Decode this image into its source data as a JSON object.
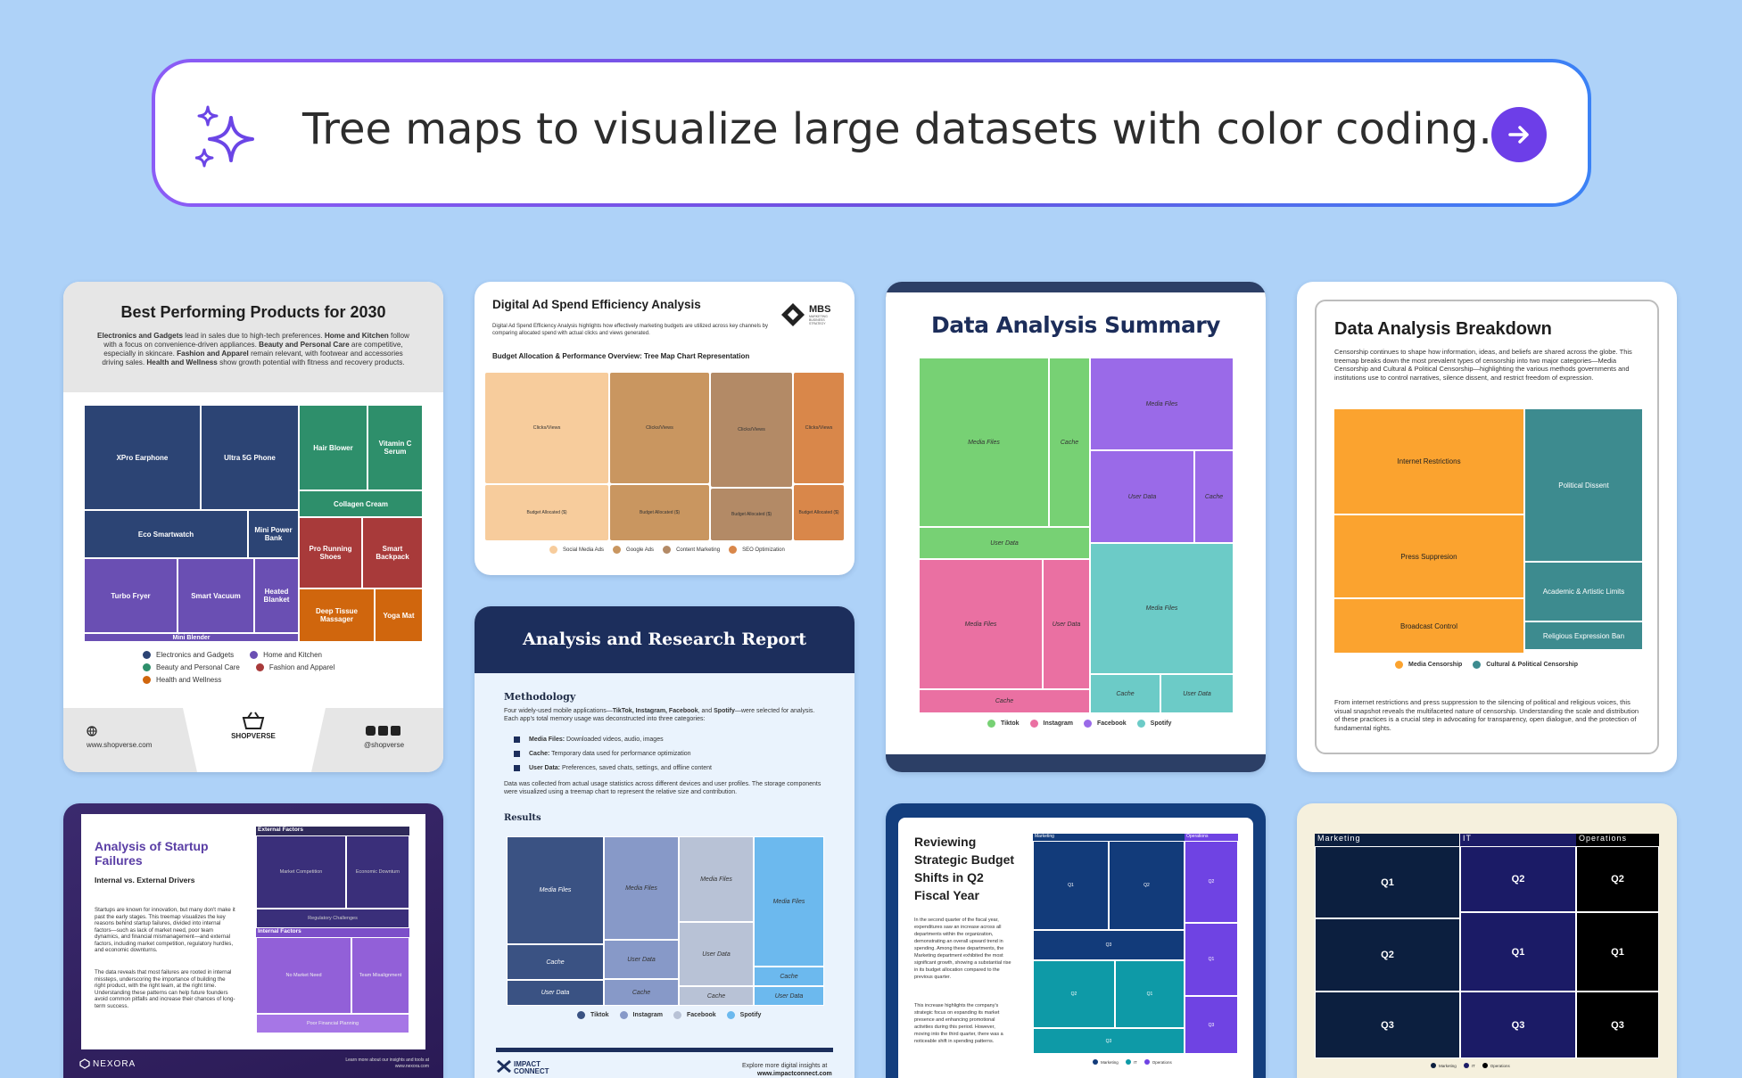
{
  "search": {
    "query": "Tree maps to visualize large datasets with color coding...",
    "sparkle_icon": "sparkles-icon",
    "submit_icon": "arrow-right-icon",
    "accent": "#6d3ee8"
  },
  "card1": {
    "title": "Best Performing Products for 2030",
    "desc_parts": [
      "Electronics and Gadgets",
      " lead in sales due to high-tech preferences. ",
      "Home and Kitchen",
      " follow with a focus on convenience-driven appliances. ",
      "Beauty and Personal Care",
      " are competitive, especially in skincare. ",
      "Fashion and Apparel",
      " remain relevant, with footwear and accessories driving sales. ",
      "Health and Wellness",
      " show growth potential with fitness and recovery products."
    ],
    "tiles": [
      "XPro Earphone",
      "Ultra 5G Phone",
      "Eco Smartwatch",
      "Mini Power Bank",
      "Turbo Fryer",
      "Smart Vacuum",
      "Heated Blanket",
      "Mini Blender",
      "Hair Blower",
      "Vitamin C Serum",
      "Collagen Cream",
      "Pro Running Shoes",
      "Smart Backpack",
      "Deep Tissue Massager",
      "Yoga Mat"
    ],
    "legend": [
      "Electronics and Gadgets",
      "Home and Kitchen",
      "Beauty and Personal Care",
      "Fashion and Apparel",
      "Health and Wellness"
    ],
    "colors": {
      "electronics": "#2c4474",
      "home": "#6a4fb3",
      "beauty": "#2e8f6b",
      "fashion": "#a83a3a",
      "health": "#d0660d"
    },
    "footer_web": "www.shopverse.com",
    "brand": "SHOPVERSE",
    "social": "@shopverse"
  },
  "card2": {
    "title": "Digital Ad Spend Efficiency Analysis",
    "logo": "MBS",
    "logo_sub": "MARKETING BUSINESS STRATEGY",
    "desc": "Digital Ad Spend Efficiency Analysis highlights how effectively marketing budgets are utilized across key channels by comparing allocated spend with actual clicks and views generated.",
    "subtitle": "Budget Allocation & Performance Overview: Tree Map Chart Representation",
    "top_label": "Clicks/Views",
    "bottom_label": "Budget Allocated ($)",
    "legend": [
      "Social Media Ads",
      "Google Ads",
      "Content Marketing",
      "SEO Optimization"
    ],
    "colors": [
      "#f7cc9c",
      "#c99660",
      "#b38a66",
      "#d9874a"
    ]
  },
  "card3": {
    "title": "Data Analysis Summary",
    "labels": {
      "media": "Media Files",
      "cache": "Cache",
      "user": "User Data"
    },
    "legend": [
      "Tiktok",
      "Instagram",
      "Facebook",
      "Spotify"
    ],
    "colors": [
      "#77d174",
      "#ea70a2",
      "#9a6ae8",
      "#6ccbc7"
    ]
  },
  "card4": {
    "title": "Data Analysis Breakdown",
    "desc": "Censorship continues to shape how information, ideas, and beliefs are shared across the globe. This treemap breaks down the most prevalent types of censorship into two major categories—Media Censorship and Cultural & Political Censorship—highlighting the various methods governments and institutions use to control narratives, silence dissent, and restrict freedom of expression.",
    "tiles": [
      "Internet Restrictions",
      "Press Suppresion",
      "Broadcast Control",
      "Political Dissent",
      "Academic & Artistic Limits",
      "Religious Expression Ban"
    ],
    "legend": [
      "Media Censorship",
      "Cultural & Political Censorship"
    ],
    "colors": [
      "#fba32f",
      "#3d8b8f"
    ],
    "footer": "From internet restrictions and press suppression to the silencing of political and religious voices, this visual snapshot reveals the multifaceted nature of censorship. Understanding the scale and distribution of these practices is a crucial step in advocating for transparency, open dialogue, and the protection of fundamental rights."
  },
  "card5": {
    "title": "Analysis and Research Report",
    "methodology": "Methodology",
    "intro_parts": [
      "Four widely-used mobile applications—",
      "TikTok, Instagram, Facebook",
      ", and ",
      "Spotify",
      "—were selected for analysis. Each app's total memory usage was deconstructed into three categories:"
    ],
    "bullets": [
      {
        "b": "Media Files:",
        "t": " Downloaded videos, audio, images"
      },
      {
        "b": "Cache:",
        "t": " Temporary data used for performance optimization"
      },
      {
        "b": "User Data:",
        "t": " Preferences, saved chats, settings, and offline content"
      }
    ],
    "para2": "Data was collected from actual usage statistics across different devices and user profiles. The storage components were visualized using a treemap chart to represent the relative size and contribution.",
    "results": "Results",
    "labels": {
      "media": "Media Files",
      "cache": "Cache",
      "user": "User Data"
    },
    "legend": [
      "Tiktok",
      "Instagram",
      "Facebook",
      "Spotify"
    ],
    "colors": [
      "#3a5283",
      "#8799c8",
      "#b8c2d6",
      "#6cb9ee"
    ],
    "brand": "IMPACT CONNECT",
    "footer": "Explore more digital insights at",
    "footer_url": "www.impactconnect.com"
  },
  "card6": {
    "title": "Analysis of Startup Failures",
    "subtitle": "Internal vs. External Drivers",
    "p1": "Startups are known for innovation, but many don't make it past the early stages. This treemap visualizes the key reasons behind startup failures, divided into internal factors—such as lack of market need, poor team dynamics, and financial mismanagement—and external factors, including market competition, regulatory hurdles, and economic downturns.",
    "p2": "The data reveals that most failures are rooted in internal missteps, underscoring the importance of building the right product, with the right team, at the right time. Understanding these patterns can help future founders avoid common pitfalls and increase their chances of long-term success.",
    "external": "External Factors",
    "internal": "Internal Factors",
    "tiles": [
      "Market Competition",
      "Economic Downturn",
      "Regulatory Challenges",
      "No Market Need",
      "Team Misalignment",
      "Poor Financial Planning"
    ],
    "brand": "NEXORA",
    "footer": "Learn more about our insights and tools at www.nexora.com"
  },
  "card7": {
    "title": "Reviewing Strategic Budget Shifts in Q2 Fiscal Year",
    "p1": "In the second quarter of the fiscal year, expenditures saw an increase across all departments within the organization, demonstrating an overall upward trend in spending. Among these departments, the Marketing department exhibited the most significant growth, showing a substantial rise in its budget allocation compared to the previous quarter.",
    "p2": "This increase highlights the company's strategic focus on expanding its market presence and enhancing promotional activities during this period. However, moving into the third quarter, there was a noticeable shift in spending patterns.",
    "groups": [
      "Marketing",
      "IT",
      "Operations"
    ],
    "q": [
      "Q1",
      "Q2",
      "Q3"
    ],
    "colors": [
      "#123b7a",
      "#0e9aa7",
      "#6f43e3"
    ]
  },
  "card8": {
    "groups": [
      "Marketing",
      "IT",
      "Operations"
    ],
    "q": [
      "Q1",
      "Q2",
      "Q3"
    ],
    "colors": [
      "#0c1f3f",
      "#1b1b66",
      "#000000"
    ]
  }
}
